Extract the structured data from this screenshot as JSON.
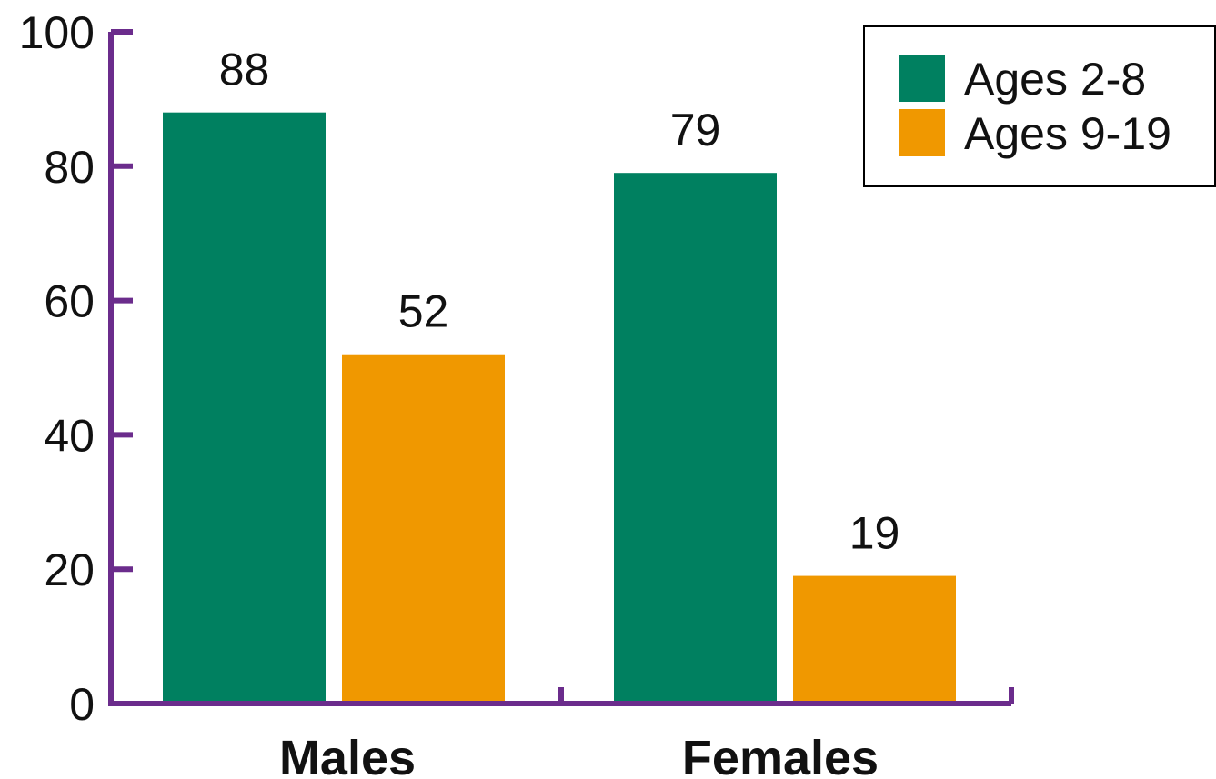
{
  "chart_data": {
    "type": "bar",
    "categories": [
      "Males",
      "Females"
    ],
    "series": [
      {
        "name": "Ages 2-8",
        "values": [
          88,
          79
        ],
        "color": "#008060"
      },
      {
        "name": "Ages 9-19",
        "values": [
          52,
          19
        ],
        "color": "#F09800"
      }
    ],
    "data_labels": [
      [
        "88",
        "79"
      ],
      [
        "52",
        "19"
      ]
    ],
    "ylim": [
      0,
      100
    ],
    "yticks": [
      0,
      20,
      40,
      60,
      80,
      100
    ],
    "ytick_labels": [
      "0",
      "20",
      "40",
      "60",
      "80",
      "100"
    ],
    "xlabel": "",
    "ylabel": "",
    "title": "",
    "grid": false,
    "legend_position": "top-right",
    "axis_color": "#6B2C8C"
  }
}
